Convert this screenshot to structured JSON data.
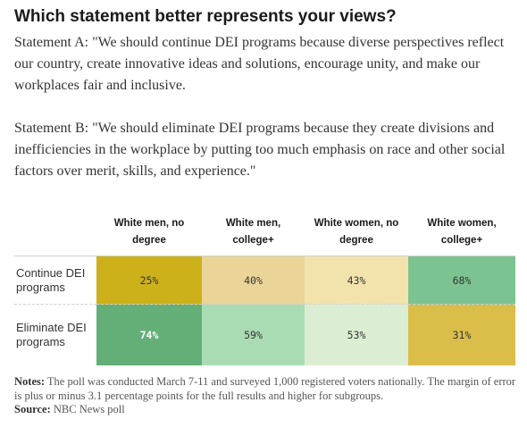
{
  "title": "Which statement better represents your views?",
  "statement_a": "Statement A: \"We should continue DEI programs because diverse perspectives reflect our country, create innovative ideas and solutions, encourage unity, and make our workplaces fair and inclusive.",
  "statement_b": "Statement B: \"We should eliminate DEI programs because they create divisions and inefficiencies in the workplace by putting too much emphasis on race and other social factors over merit, skills, and experience.\"",
  "chart_data": {
    "type": "table",
    "columns": [
      "White men, no degree",
      "White men, college+",
      "White women, no degree",
      "White women, college+"
    ],
    "rows": [
      {
        "label": "Continue DEI programs",
        "values": [
          "25%",
          "40%",
          "43%",
          "68%"
        ],
        "colors": [
          "#ccb11a",
          "#ead497",
          "#f2e3ad",
          "#7cc391"
        ]
      },
      {
        "label": "Eliminate DEI programs",
        "values": [
          "74%",
          "59%",
          "53%",
          "31%"
        ],
        "colors": [
          "#64af78",
          "#aadcb4",
          "#dbeed4",
          "#dbbd4a"
        ]
      }
    ]
  },
  "notes_label": "Notes:",
  "notes_text": "The poll was conducted March 7-11 and surveyed 1,000 registered voters nationally. The margin of error is plus or minus 3.1 percentage points for the full results and higher for subgroups.",
  "source_label": "Source:",
  "source_text": "NBC News poll"
}
